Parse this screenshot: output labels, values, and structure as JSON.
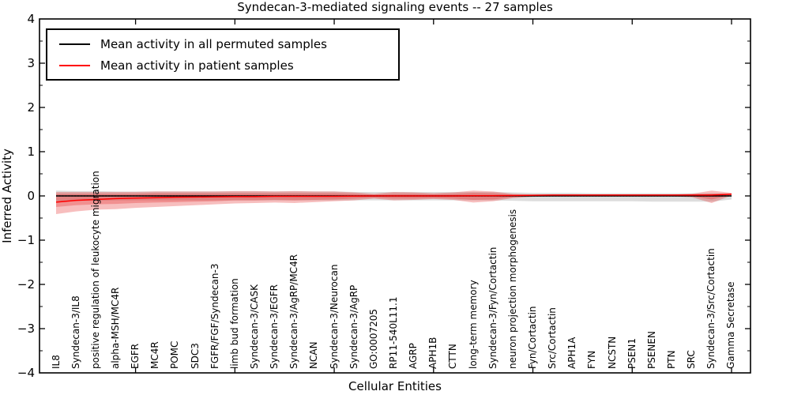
{
  "chart_data": {
    "type": "line",
    "title": "Syndecan-3-mediated signaling events -- 27 samples",
    "xlabel": "Cellular Entities",
    "ylabel": "Inferred Activity",
    "ylim": [
      -4,
      4
    ],
    "yticks": [
      "4",
      "3",
      "2",
      "1",
      "0",
      "−1",
      "−2",
      "−3",
      "−4"
    ],
    "grid": false,
    "legend_position": "upper left",
    "zero_line": true,
    "categories": [
      "IL8",
      "Syndecan-3/IL8",
      "positive regulation of leukocyte migration",
      "alpha-MSH/MC4R",
      "EGFR",
      "MC4R",
      "POMC",
      "SDC3",
      "FGFR/FGF/Syndecan-3",
      "limb bud formation",
      "Syndecan-3/CASK",
      "Syndecan-3/EGFR",
      "Syndecan-3/AgRP/MC4R",
      "NCAN",
      "Syndecan-3/Neurocan",
      "Syndecan-3/AgRP",
      "GO:0007205",
      "RP11-540L11.1",
      "AGRP",
      "APH1B",
      "CTTN",
      "long-term memory",
      "Syndecan-3/Fyn/Cortactin",
      "neuron projection morphogenesis",
      "Fyn/Cortactin",
      "Src/Cortactin",
      "APH1A",
      "FYN",
      "NCSTN",
      "PSEN1",
      "PSENEN",
      "PTN",
      "SRC",
      "Syndecan-3/Src/Cortactin",
      "Gamma Secretase"
    ],
    "series": [
      {
        "name": "Mean activity in all permuted samples",
        "color": "#000000",
        "values": [
          0,
          0,
          0,
          0,
          0,
          0,
          0,
          0,
          0,
          0,
          0,
          0,
          0,
          0,
          0,
          0,
          0,
          0,
          0,
          0,
          0,
          0,
          0,
          0,
          0,
          0,
          0,
          0,
          0,
          0,
          0,
          0,
          0,
          0,
          0
        ]
      },
      {
        "name": "Mean activity in patient samples",
        "color": "#ff0000",
        "values": [
          -0.14,
          -0.1,
          -0.08,
          -0.06,
          -0.05,
          -0.04,
          -0.03,
          -0.025,
          -0.02,
          -0.015,
          -0.015,
          -0.01,
          -0.01,
          -0.01,
          -0.01,
          -0.005,
          0,
          0,
          0,
          0,
          0,
          0.005,
          0.005,
          0.01,
          0.015,
          0.02,
          0.02,
          0.02,
          0.02,
          0.02,
          0.02,
          0.02,
          0.02,
          0.02,
          0.04
        ]
      }
    ],
    "bands": [
      {
        "name": "permuted-samples-std-band",
        "color": "#787878",
        "opacity": 0.25,
        "upper": [
          0.12,
          0.11,
          0.11,
          0.1,
          0.1,
          0.1,
          0.1,
          0.1,
          0.1,
          0.1,
          0.1,
          0.1,
          0.1,
          0.1,
          0.1,
          0.09,
          0.09,
          0.09,
          0.09,
          0.09,
          0.09,
          0.09,
          0.09,
          0.08,
          0.07,
          0.07,
          0.07,
          0.06,
          0.06,
          0.06,
          0.06,
          0.06,
          0.06,
          0.06,
          0.05
        ],
        "lower": [
          -0.12,
          -0.11,
          -0.11,
          -0.1,
          -0.1,
          -0.1,
          -0.1,
          -0.1,
          -0.1,
          -0.1,
          -0.1,
          -0.1,
          -0.1,
          -0.1,
          -0.1,
          -0.1,
          -0.1,
          -0.1,
          -0.1,
          -0.1,
          -0.1,
          -0.1,
          -0.1,
          -0.11,
          -0.12,
          -0.12,
          -0.12,
          -0.12,
          -0.12,
          -0.12,
          -0.13,
          -0.13,
          -0.13,
          -0.13,
          -0.08
        ]
      },
      {
        "name": "patient-samples-std-band-outer",
        "color": "#e62828",
        "opacity": 0.3,
        "upper": [
          0.09,
          0.09,
          0.09,
          0.09,
          0.09,
          0.1,
          0.1,
          0.1,
          0.1,
          0.11,
          0.11,
          0.1,
          0.11,
          0.1,
          0.1,
          0.08,
          0.05,
          0.09,
          0.08,
          0.06,
          0.08,
          0.12,
          0.1,
          0.05,
          0.03,
          0.03,
          0.03,
          0.03,
          0.03,
          0.03,
          0.03,
          0.03,
          0.05,
          0.12,
          0.07
        ],
        "lower": [
          -0.41,
          -0.35,
          -0.31,
          -0.3,
          -0.27,
          -0.25,
          -0.23,
          -0.21,
          -0.19,
          -0.17,
          -0.16,
          -0.15,
          -0.16,
          -0.14,
          -0.12,
          -0.1,
          -0.06,
          -0.1,
          -0.09,
          -0.07,
          -0.09,
          -0.15,
          -0.12,
          -0.05,
          -0.02,
          -0.01,
          -0.01,
          -0.01,
          -0.01,
          -0.01,
          -0.01,
          -0.01,
          -0.03,
          -0.16,
          0.01
        ]
      },
      {
        "name": "patient-samples-std-band-inner",
        "color": "#e62828",
        "opacity": 0.3,
        "upper": [
          0.05,
          0.05,
          0.05,
          0.05,
          0.05,
          0.06,
          0.06,
          0.06,
          0.06,
          0.06,
          0.06,
          0.06,
          0.06,
          0.06,
          0.06,
          0.05,
          0.03,
          0.05,
          0.05,
          0.04,
          0.05,
          0.07,
          0.06,
          0.03,
          0.02,
          0.02,
          0.02,
          0.02,
          0.02,
          0.02,
          0.02,
          0.02,
          0.03,
          0.05,
          0.05
        ],
        "lower": [
          -0.25,
          -0.21,
          -0.19,
          -0.18,
          -0.16,
          -0.15,
          -0.14,
          -0.13,
          -0.12,
          -0.1,
          -0.1,
          -0.09,
          -0.1,
          -0.09,
          -0.08,
          -0.06,
          -0.04,
          -0.06,
          -0.06,
          -0.05,
          -0.06,
          -0.09,
          -0.08,
          -0.03,
          -0.01,
          0,
          0,
          0,
          0,
          0,
          0,
          0,
          -0.01,
          -0.08,
          0.02
        ]
      }
    ]
  }
}
